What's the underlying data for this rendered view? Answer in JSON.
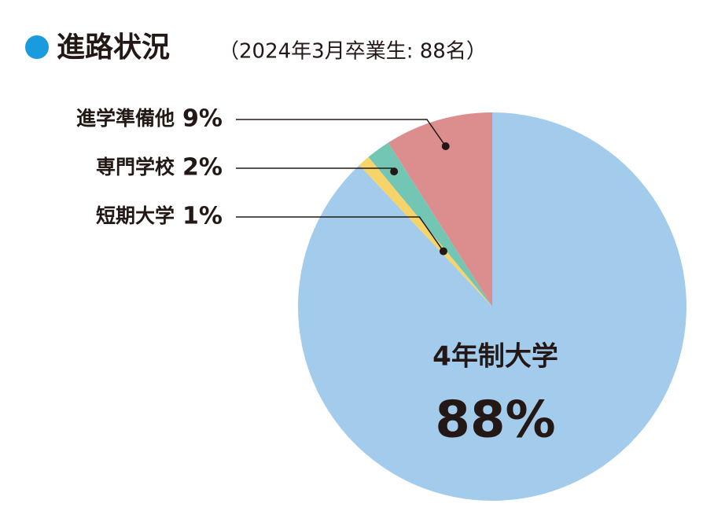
{
  "chart_data": {
    "type": "pie",
    "title": "進路状況",
    "subtitle": "（2024年3月卒業生: 88名）",
    "categories": [
      "4年制大学",
      "短期大学",
      "専門学校",
      "進学準備他"
    ],
    "values": [
      88,
      1,
      2,
      9
    ],
    "value_labels": [
      "88%",
      "1%",
      "2%",
      "9%"
    ],
    "colors": [
      "#a3cbeb",
      "#f7d46a",
      "#74c6b4",
      "#db8e8d"
    ]
  }
}
